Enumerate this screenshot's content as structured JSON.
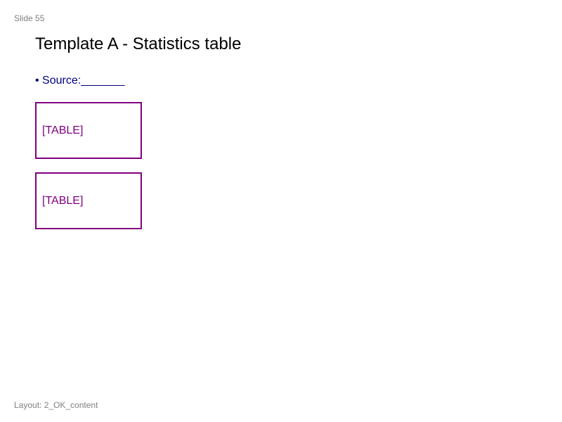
{
  "slide": {
    "number_label": "Slide 55",
    "title": "Template A - Statistics table",
    "bullet": "• Source:_______",
    "placeholders": [
      {
        "label": "[TABLE]"
      },
      {
        "label": "[TABLE]"
      }
    ],
    "layout_label": "Layout: 2_OK_content"
  },
  "colors": {
    "title": "#000000",
    "bullet": "#000080",
    "placeholder": "#800080",
    "meta": "#808080"
  }
}
